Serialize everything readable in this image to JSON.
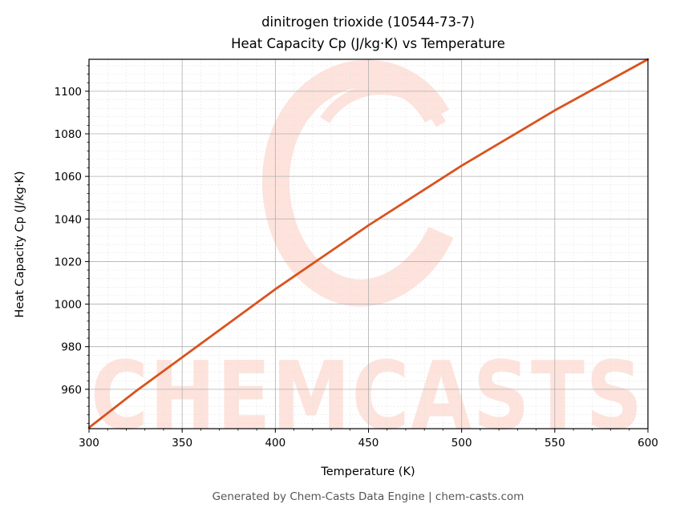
{
  "title_line1": "dinitrogen trioxide (10544-73-7)",
  "title_line2": "Heat Capacity Cp (J/kg·K) vs Temperature",
  "footer": "Generated by Chem-Casts Data Engine | chem-casts.com",
  "watermark": "CHEMCASTS",
  "colors": {
    "line": "#d9531e",
    "watermark": "#fde3dc",
    "grid_major": "#b0b0b0",
    "grid_minor": "#e0e0e0"
  },
  "chart_data": {
    "type": "line",
    "title": "dinitrogen trioxide (10544-73-7)\nHeat Capacity Cp (J/kg·K) vs Temperature",
    "xlabel": "Temperature (K)",
    "ylabel": "Heat Capacity Cp (J/kg·K)",
    "xlim": [
      300,
      600
    ],
    "ylim": [
      941.5,
      1115
    ],
    "xticks": [
      300,
      350,
      400,
      450,
      500,
      550,
      600
    ],
    "yticks": [
      960,
      980,
      1000,
      1020,
      1040,
      1060,
      1080,
      1100
    ],
    "grid": true,
    "minor_grid": true,
    "legend": "none",
    "series": [
      {
        "x": [
          300,
          325,
          350,
          375,
          400,
          425,
          450,
          475,
          500,
          525,
          550,
          575,
          600
        ],
        "y": [
          942,
          959,
          975,
          991,
          1007,
          1022,
          1037,
          1051,
          1065,
          1078,
          1091,
          1103,
          1115
        ]
      }
    ]
  }
}
